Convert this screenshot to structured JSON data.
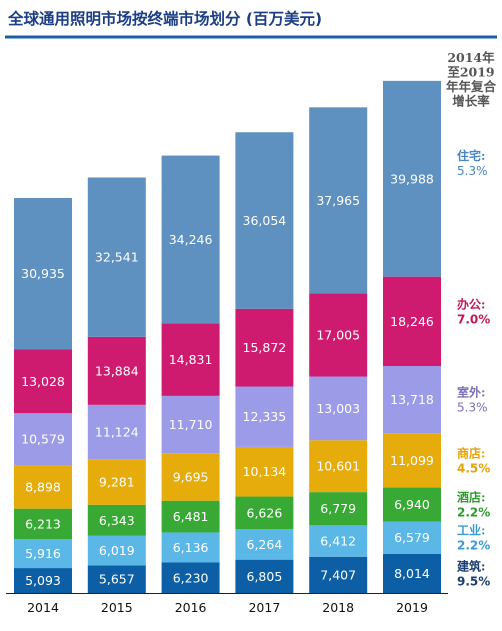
{
  "chart_data": {
    "type": "bar",
    "stacked": true,
    "title": "全球通用照明市场按终端市场划分 (百万美元)",
    "categories": [
      "2014",
      "2015",
      "2016",
      "2017",
      "2018",
      "2019"
    ],
    "cagr_header": "2014年至2019年年复合增长率",
    "series": [
      {
        "name": "建筑",
        "cagr": "9.5%",
        "color": "#0d5fa5",
        "label_color": "#1b3e6e",
        "values": [
          5093,
          5657,
          6230,
          6805,
          7407,
          8014
        ]
      },
      {
        "name": "工业",
        "cagr": "2.2%",
        "color": "#5bb7e6",
        "label_color": "#3a9ad3",
        "values": [
          5916,
          6019,
          6136,
          6264,
          6412,
          6579
        ]
      },
      {
        "name": "酒店",
        "cagr": "2.2%",
        "color": "#39a935",
        "label_color": "#2e9a2e",
        "values": [
          6213,
          6343,
          6481,
          6626,
          6779,
          6940
        ]
      },
      {
        "name": "商店",
        "cagr": "4.5%",
        "color": "#e6ac0c",
        "label_color": "#e3a40a",
        "values": [
          8898,
          9281,
          9695,
          10134,
          10601,
          11099
        ]
      },
      {
        "name": "室外",
        "cagr": "5.3%",
        "color": "#9b9be8",
        "label_color": "#7b6fb6",
        "values": [
          10579,
          11124,
          11710,
          12335,
          13003,
          13718
        ]
      },
      {
        "name": "办公",
        "cagr": "7.0%",
        "color": "#cf1b6f",
        "label_color": "#c2185b",
        "values": [
          13028,
          13884,
          14831,
          15872,
          17005,
          18246
        ]
      },
      {
        "name": "住宅",
        "cagr": "5.3%",
        "color": "#5e90c0",
        "label_color": "#4a86c1",
        "values": [
          30935,
          32541,
          34246,
          36054,
          37965,
          39988
        ]
      }
    ]
  }
}
